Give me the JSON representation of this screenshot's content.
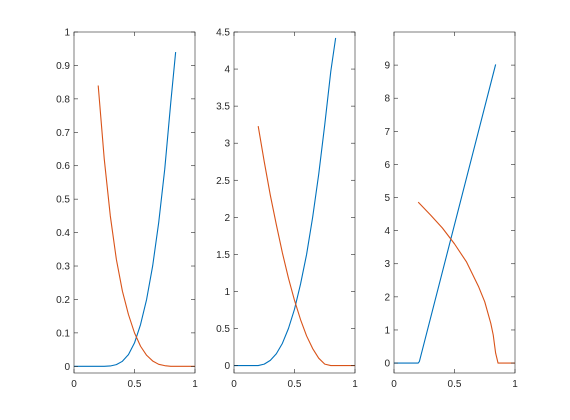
{
  "colors": {
    "series1": "#0072BD",
    "series2": "#D95319",
    "axes": "#262626",
    "background": "#ffffff"
  },
  "chart_data": [
    {
      "type": "line",
      "xlim": [
        0,
        1
      ],
      "ylim": [
        -0.02,
        1
      ],
      "xticks": [
        0,
        0.5,
        1
      ],
      "xtick_labels": [
        "0",
        "0.5",
        "1"
      ],
      "yticks": [
        0,
        0.1,
        0.2,
        0.3,
        0.4,
        0.5,
        0.6,
        0.7,
        0.8,
        0.9,
        1
      ],
      "ytick_labels": [
        "0",
        "0.1",
        "0.2",
        "0.3",
        "0.4",
        "0.5",
        "0.6",
        "0.7",
        "0.8",
        "0.9",
        "1"
      ],
      "grid": false,
      "series": [
        {
          "color": "#0072BD",
          "x": [
            0,
            0.2,
            0.25,
            0.3,
            0.35,
            0.4,
            0.45,
            0.5,
            0.55,
            0.6,
            0.65,
            0.7,
            0.75,
            0.8,
            0.84
          ],
          "y": [
            0,
            0,
            0,
            0.001,
            0.005,
            0.015,
            0.035,
            0.07,
            0.125,
            0.2,
            0.3,
            0.43,
            0.59,
            0.79,
            0.94
          ]
        },
        {
          "color": "#D95319",
          "x": [
            0.2,
            0.25,
            0.3,
            0.35,
            0.4,
            0.45,
            0.5,
            0.55,
            0.6,
            0.65,
            0.7,
            0.75,
            0.8,
            0.84,
            0.9,
            1
          ],
          "y": [
            0.84,
            0.62,
            0.45,
            0.32,
            0.225,
            0.155,
            0.1,
            0.06,
            0.033,
            0.016,
            0.006,
            0.002,
            0,
            0,
            0,
            0
          ]
        }
      ]
    },
    {
      "type": "line",
      "xlim": [
        0,
        1
      ],
      "ylim": [
        -0.1,
        4.5
      ],
      "xticks": [
        0,
        0.5,
        1
      ],
      "xtick_labels": [
        "0",
        "0.5",
        "1"
      ],
      "yticks": [
        0,
        0.5,
        1,
        1.5,
        2,
        2.5,
        3,
        3.5,
        4,
        4.5
      ],
      "ytick_labels": [
        "0",
        "0.5",
        "1",
        "1.5",
        "2",
        "2.5",
        "3",
        "3.5",
        "4",
        "4.5"
      ],
      "grid": false,
      "series": [
        {
          "color": "#0072BD",
          "x": [
            0,
            0.2,
            0.25,
            0.3,
            0.35,
            0.4,
            0.45,
            0.5,
            0.55,
            0.6,
            0.65,
            0.7,
            0.75,
            0.8,
            0.84
          ],
          "y": [
            0,
            0,
            0.02,
            0.07,
            0.16,
            0.3,
            0.5,
            0.76,
            1.1,
            1.5,
            2.0,
            2.58,
            3.25,
            3.97,
            4.42
          ]
        },
        {
          "color": "#D95319",
          "x": [
            0.2,
            0.25,
            0.3,
            0.35,
            0.4,
            0.45,
            0.5,
            0.55,
            0.6,
            0.65,
            0.7,
            0.75,
            0.8,
            0.84,
            0.9,
            1
          ],
          "y": [
            3.23,
            2.75,
            2.3,
            1.9,
            1.52,
            1.18,
            0.88,
            0.62,
            0.4,
            0.23,
            0.1,
            0.02,
            0,
            0,
            0,
            0
          ]
        }
      ]
    },
    {
      "type": "line",
      "xlim": [
        0,
        1
      ],
      "ylim": [
        -0.3,
        10
      ],
      "xticks": [
        0,
        0.5,
        1
      ],
      "xtick_labels": [
        "0",
        "0.5",
        "1"
      ],
      "yticks": [
        0,
        1,
        2,
        3,
        4,
        5,
        6,
        7,
        8,
        9
      ],
      "ytick_labels": [
        "0",
        "1",
        "2",
        "3",
        "4",
        "5",
        "6",
        "7",
        "8",
        "9"
      ],
      "grid": false,
      "series": [
        {
          "color": "#0072BD",
          "x": [
            0,
            0.2,
            0.21,
            0.84
          ],
          "y": [
            0,
            0,
            0.05,
            9.02
          ]
        },
        {
          "color": "#D95319",
          "x": [
            0.2,
            0.3,
            0.4,
            0.5,
            0.6,
            0.7,
            0.75,
            0.8,
            0.82,
            0.84,
            0.86,
            1
          ],
          "y": [
            4.86,
            4.48,
            4.08,
            3.6,
            3.05,
            2.3,
            1.85,
            1.2,
            0.85,
            0.3,
            0,
            0
          ]
        }
      ]
    }
  ]
}
